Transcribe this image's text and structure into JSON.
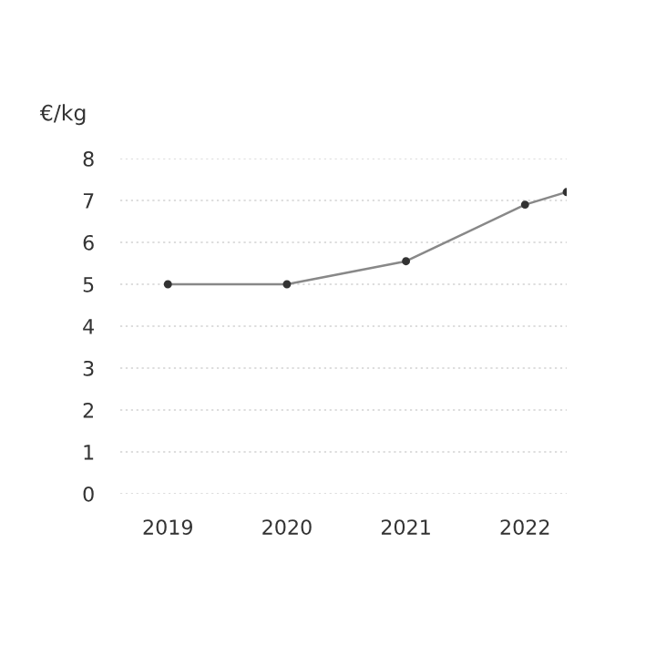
{
  "chart_data": {
    "type": "line",
    "ylabel": "€/kg",
    "x": [
      2019,
      2020,
      2021,
      2022,
      2022.35
    ],
    "series": [
      {
        "color": "#888888",
        "values": [
          5.0,
          5.0,
          5.55,
          6.9,
          7.2
        ]
      }
    ],
    "xlim": [
      2018.6,
      2022.35
    ],
    "xticks": [
      2019,
      2020,
      2021,
      2022
    ],
    "ylim": [
      0,
      8
    ],
    "yticks": [
      0,
      1,
      2,
      3,
      4,
      5,
      6,
      7,
      8
    ],
    "grid": "y",
    "marker": "circle",
    "line_style": "solid",
    "legend": false
  }
}
